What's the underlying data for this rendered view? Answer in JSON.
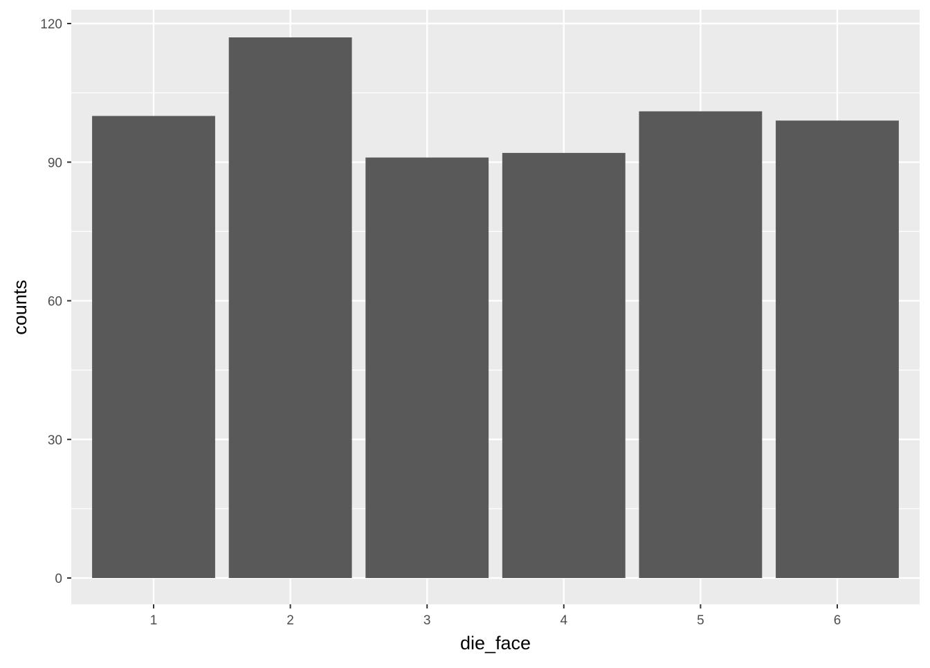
{
  "chart_data": {
    "type": "bar",
    "title": "",
    "xlabel": "die_face",
    "ylabel": "counts",
    "categories": [
      "1",
      "2",
      "3",
      "4",
      "5",
      "6"
    ],
    "values": [
      100,
      117,
      91,
      92,
      101,
      99
    ],
    "ylim": [
      0,
      120
    ],
    "yticks": [
      0,
      30,
      60,
      90,
      120
    ],
    "grid": true,
    "legend": "none",
    "colors": {
      "bar": "#595959",
      "panel": "#EBEBEB",
      "grid": "#FFFFFF",
      "text": "#4D4D4D"
    }
  }
}
